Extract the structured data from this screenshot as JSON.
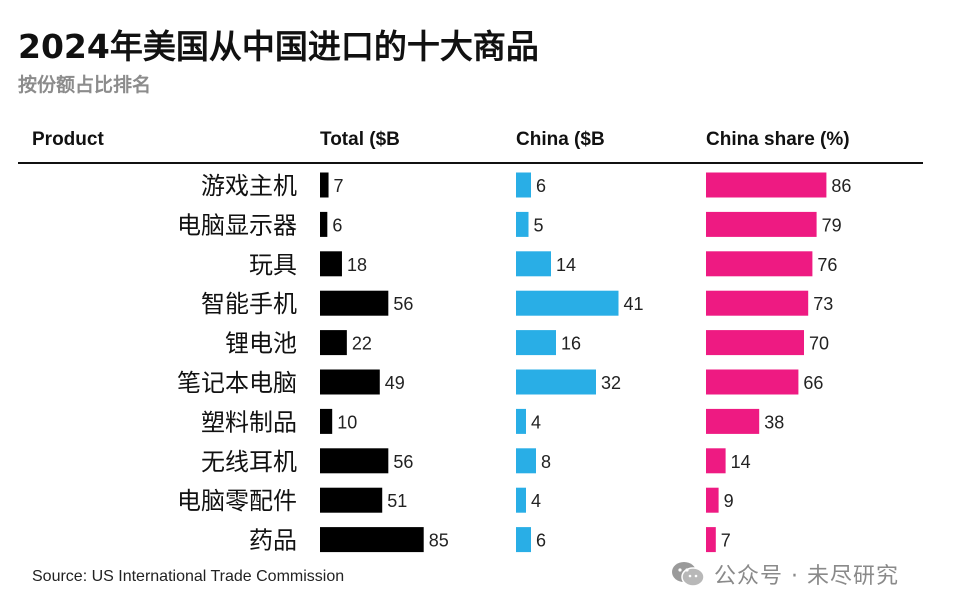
{
  "title": "2024年美国从中国进口的十大商品",
  "subtitle": "按份额占比排名",
  "headers": {
    "product": "Product",
    "total": "Total ($B",
    "china": "China ($B",
    "share": "China share (%)"
  },
  "source": "Source: US International Trade Commission",
  "watermark": "公众号 · 未尽研究",
  "colors": {
    "total": "#000000",
    "china": "#29aee6",
    "share": "#ee1a82",
    "text": "#111111",
    "muted": "#8c8c8c"
  },
  "chart_data": {
    "type": "bar",
    "title": "2024年美国从中国进口的十大商品",
    "subtitle": "按份额占比排名",
    "categories": [
      "游戏主机",
      "电脑显示器",
      "玩具",
      "智能手机",
      "锂电池",
      "笔记本电脑",
      "塑料制品",
      "无线耳机",
      "电脑零配件",
      "药品"
    ],
    "series": [
      {
        "name": "Total ($B",
        "values": [
          7,
          6,
          18,
          56,
          22,
          49,
          10,
          56,
          51,
          85
        ]
      },
      {
        "name": "China ($B",
        "values": [
          6,
          5,
          14,
          41,
          16,
          32,
          4,
          8,
          4,
          6
        ]
      },
      {
        "name": "China share (%)",
        "values": [
          86,
          79,
          76,
          73,
          70,
          66,
          38,
          14,
          9,
          7
        ]
      }
    ],
    "orientation": "horizontal",
    "grid": false,
    "legend": "column headers"
  }
}
